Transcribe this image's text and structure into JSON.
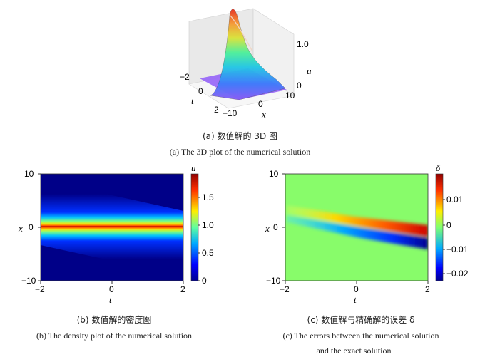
{
  "figure_a": {
    "caption_zh": "(a) 数值解的 3D 图",
    "caption_en": "(a) The 3D plot of the numerical solution",
    "chart_data": {
      "type": "surface",
      "t_label": "t",
      "x_label": "x",
      "z_label": "u",
      "t_ticks": [
        "−2",
        "0",
        "2"
      ],
      "x_ticks": [
        "−10",
        "0",
        "10"
      ],
      "z_ticks": [
        "0",
        "1.0"
      ],
      "t_range": [
        -2,
        2
      ],
      "x_range": [
        -10,
        10
      ],
      "z_range": [
        0,
        2
      ]
    }
  },
  "figure_b": {
    "caption_zh": "(b) 数值解的密度图",
    "caption_en": "(b) The density plot of the numerical solution",
    "chart_data": {
      "type": "heatmap",
      "xlabel": "t",
      "ylabel": "x",
      "colorbar_label": "u",
      "x_ticks": [
        "−2",
        "0",
        "2"
      ],
      "y_ticks": [
        "10",
        "0",
        "−10"
      ],
      "colorbar_ticks": [
        "0",
        "0.5",
        "1.0",
        "1.5"
      ],
      "xlim": [
        -2,
        2
      ],
      "ylim": [
        -10,
        10
      ],
      "clim": [
        0,
        1.9
      ],
      "peak_center_at_t": {
        "-2": 2.0,
        "0": 0.0,
        "2": -2.0
      }
    }
  },
  "figure_c": {
    "caption_zh": "(c) 数值解与精确解的误差 δ",
    "caption_en_line1": "(c) The errors between the numerical solution",
    "caption_en_line2": "and the exact solution",
    "chart_data": {
      "type": "heatmap",
      "xlabel": "t",
      "ylabel": "x",
      "colorbar_label": "δ",
      "x_ticks": [
        "−2",
        "0",
        "2"
      ],
      "y_ticks": [
        "10",
        "0",
        "−10"
      ],
      "colorbar_ticks": [
        "0.01",
        "0",
        "−0.01",
        "−0.02"
      ],
      "xlim": [
        -2,
        2
      ],
      "ylim": [
        -10,
        10
      ],
      "clim": [
        -0.023,
        0.019
      ]
    }
  }
}
